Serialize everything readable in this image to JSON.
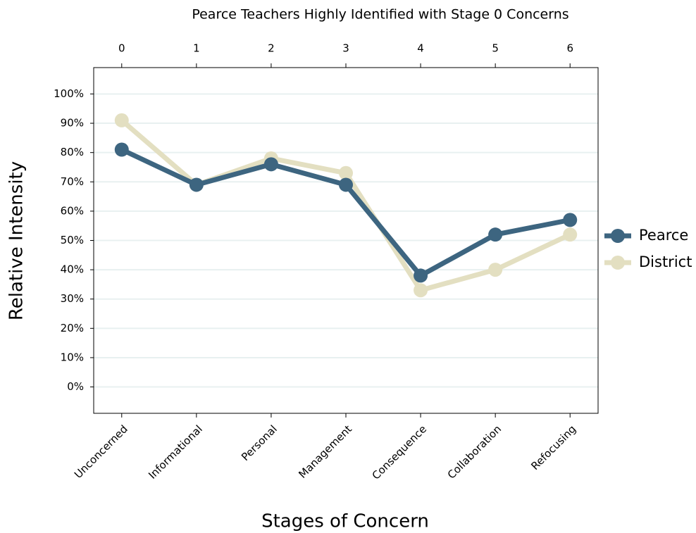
{
  "chart_data": {
    "type": "line",
    "title": "Pearce Teachers Highly Identified with Stage 0 Concerns",
    "x_label": "Stages of Concern",
    "y_label": "Relative Intensity",
    "categories": [
      "Unconcerned",
      "Informational",
      "Personal",
      "Management",
      "Consequence",
      "Collaboration",
      "Refocusing"
    ],
    "x2ticks": [
      0,
      1,
      2,
      3,
      4,
      5,
      6
    ],
    "x2lim": [
      -0.375,
      6.375
    ],
    "series": [
      {
        "name": "Pearce",
        "color": "#3d6580",
        "values": [
          81,
          69,
          76,
          69,
          38,
          52,
          57
        ]
      },
      {
        "name": "District",
        "color": "#e3dfc1",
        "values": [
          91,
          69,
          78,
          73,
          33,
          40,
          52
        ]
      }
    ],
    "ylim": [
      -9,
      109
    ],
    "yticks": [
      {
        "value": 0,
        "label": "0%"
      },
      {
        "value": 10,
        "label": "10%"
      },
      {
        "value": 20,
        "label": "20%"
      },
      {
        "value": 30,
        "label": "30%"
      },
      {
        "value": 40,
        "label": "40%"
      },
      {
        "value": 50,
        "label": "50%"
      },
      {
        "value": 60,
        "label": "60%"
      },
      {
        "value": 70,
        "label": "70%"
      },
      {
        "value": 80,
        "label": "80%"
      },
      {
        "value": 90,
        "label": "90%"
      },
      {
        "value": 100,
        "label": "100%"
      }
    ],
    "grid": true,
    "legend": "right"
  }
}
